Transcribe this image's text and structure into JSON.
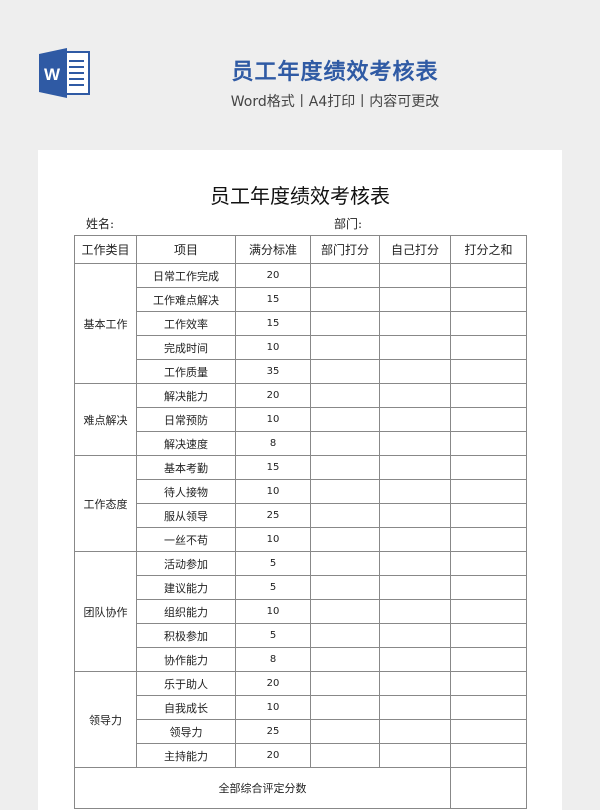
{
  "banner": {
    "logo_letter": "W",
    "title": "员工年度绩效考核表",
    "subtitle": "Word格式丨A4打印丨内容可更改",
    "accent_color": "#2f5aa4"
  },
  "document": {
    "title": "员工年度绩效考核表",
    "name_label": "姓名:",
    "dept_label": "部门:",
    "headers": [
      "工作类目",
      "项目",
      "满分标准",
      "部门打分",
      "自己打分",
      "打分之和"
    ],
    "groups": [
      {
        "category": "基本工作",
        "items": [
          [
            "日常工作完成",
            "20"
          ],
          [
            "工作难点解决",
            "15"
          ],
          [
            "工作效率",
            "15"
          ],
          [
            "完成时间",
            "10"
          ],
          [
            "工作质量",
            "35"
          ]
        ]
      },
      {
        "category": "难点解决",
        "items": [
          [
            "解决能力",
            "20"
          ],
          [
            "日常预防",
            "10"
          ],
          [
            "解决速度",
            "8"
          ]
        ]
      },
      {
        "category": "工作态度",
        "items": [
          [
            "基本考勤",
            "15"
          ],
          [
            "待人接物",
            "10"
          ],
          [
            "服从领导",
            "25"
          ],
          [
            "一丝不苟",
            "10"
          ]
        ]
      },
      {
        "category": "团队协作",
        "items": [
          [
            "活动参加",
            "5"
          ],
          [
            "建议能力",
            "5"
          ],
          [
            "组织能力",
            "10"
          ],
          [
            "积极参加",
            "5"
          ],
          [
            "协作能力",
            "8"
          ]
        ]
      },
      {
        "category": "领导力",
        "items": [
          [
            "乐于助人",
            "20"
          ],
          [
            "自我成长",
            "10"
          ],
          [
            "领导力",
            "25"
          ],
          [
            "主持能力",
            "20"
          ]
        ]
      }
    ],
    "total_label": "全部综合评定分数"
  }
}
